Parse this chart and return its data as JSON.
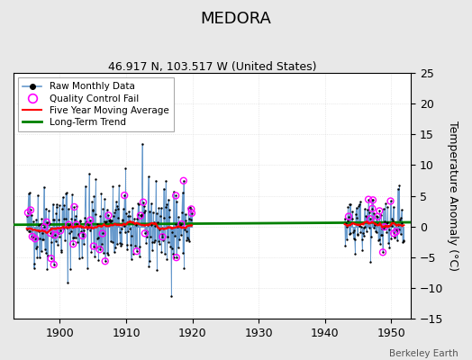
{
  "title": "MEDORA",
  "subtitle": "46.917 N, 103.517 W (United States)",
  "credit": "Berkeley Earth",
  "ylabel": "Temperature Anomaly (°C)",
  "xlim": [
    1893,
    1953
  ],
  "ylim": [
    -15,
    25
  ],
  "yticks": [
    -15,
    -10,
    -5,
    0,
    5,
    10,
    15,
    20,
    25
  ],
  "xticks": [
    1900,
    1910,
    1920,
    1930,
    1940,
    1950
  ],
  "bg_color": "#e8e8e8",
  "plot_bg_color": "#ffffff",
  "seed": 42,
  "early_start": 1895,
  "early_end": 1920,
  "late_start": 1943,
  "late_end": 1952,
  "noise_early": 3.5,
  "noise_late": 2.5
}
